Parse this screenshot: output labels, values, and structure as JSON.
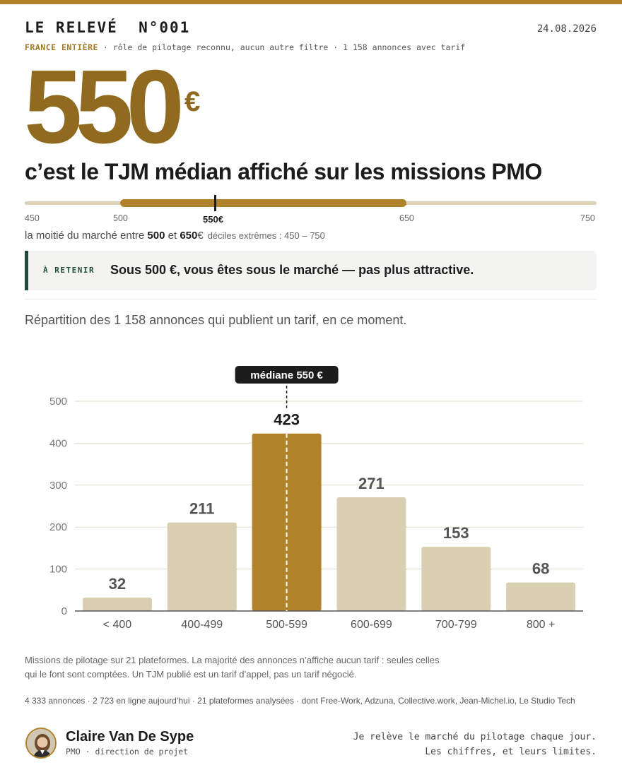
{
  "header": {
    "brand": "LE RELEVÉ  N°001",
    "date": "24.08.2026",
    "scope": "FRANCE ENTIÈRE",
    "filters": " · rôle de pilotage reconnu, aucun autre filtre · 1 158 annonces avec tarif"
  },
  "hero": {
    "price": "550",
    "currency": "€",
    "headline": "c’est le TJM médian affiché sur les missions PMO"
  },
  "range": {
    "ticks": [
      "450",
      "500",
      "650",
      "750"
    ],
    "median_label": "550€",
    "min": 450,
    "max": 750,
    "q_low": 500,
    "q_high": 650,
    "median": 550,
    "note_prefix": "la moitié du marché entre ",
    "note_low": "500",
    "note_mid": " et ",
    "note_high": "650",
    "note_cur": "€",
    "deciles": "déciles extrêmes : 450 – 750"
  },
  "callout": {
    "tag": "À RETENIR",
    "message": "Sous 500 €, vous êtes sous le marché — pas plus attractive."
  },
  "intro": "Répartition des 1 158 annonces qui publient un tarif, en ce moment.",
  "chart_data": {
    "type": "bar",
    "categories": [
      "< 400",
      "400-499",
      "500-599",
      "600-699",
      "700-799",
      "800 +"
    ],
    "values": [
      32,
      211,
      423,
      271,
      153,
      68
    ],
    "yticks": [
      "0",
      "100",
      "200",
      "300",
      "400",
      "500"
    ],
    "ylim": [
      0,
      500
    ],
    "highlight_index": 2,
    "annotation": "médiane 550 €",
    "colors": {
      "bar": "#d9cfb3",
      "highlight": "#b0832a",
      "grid": "#e3dcc8",
      "label": "#555555",
      "highlight_label": "#1c1c1c",
      "annotation_bg": "#1c1c1c"
    },
    "grid": true,
    "xlabel": "",
    "ylabel": ""
  },
  "footer": {
    "note": "Missions de pilotage sur 21 plateformes. La majorité des annonces n’affiche aucun tarif : seules celles qui le font sont comptées. Un TJM publié est un tarif d’appel, pas un tarif négocié.",
    "stats": "4 333 annonces · 2 723 en ligne aujourd’hui · 21 plateformes analysées · dont Free-Work, Adzuna, Collective.work, Jean-Michel.io, Le Studio Tech",
    "author": "Claire Van De Sype",
    "role": "PMO · direction de projet",
    "signoff_1": "Je relève le marché du pilotage chaque jour.",
    "signoff_2": "Les chiffres, et leurs limites."
  }
}
